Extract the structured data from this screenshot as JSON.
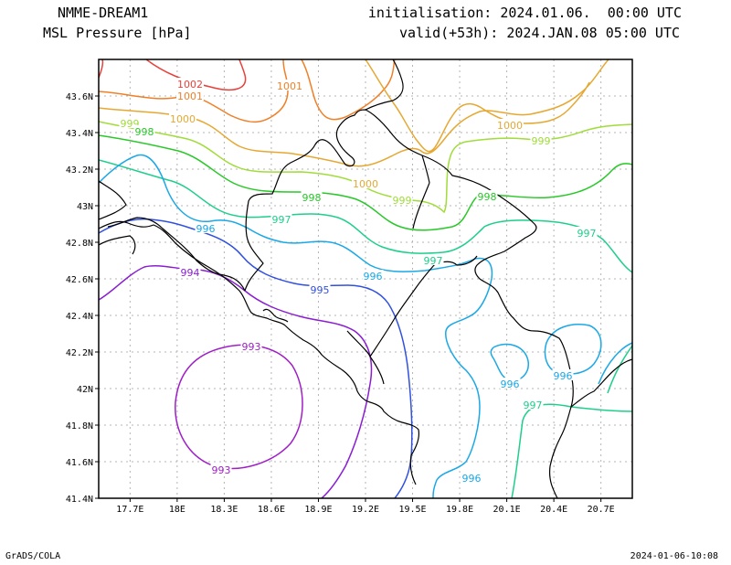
{
  "header": {
    "model": "NMME-DREAM1",
    "variable": "MSL Pressure [hPa]",
    "init": "initialisation: 2024.01.06.  00:00 UTC",
    "valid": "valid(+53h): 2024.JAN.08 05:00 UTC"
  },
  "footer": {
    "left": "GrADS/COLA",
    "right": "2024-01-06-10:08"
  },
  "map": {
    "x_ticks": [
      "17.7E",
      "18E",
      "18.3E",
      "18.6E",
      "18.9E",
      "19.2E",
      "19.5E",
      "19.8E",
      "20.1E",
      "20.4E",
      "20.7E"
    ],
    "y_ticks": [
      "43.6N",
      "43.4N",
      "43.2N",
      "43N",
      "42.8N",
      "42.6N",
      "42.4N",
      "42.2N",
      "42N",
      "41.8N",
      "41.6N",
      "41.4N"
    ],
    "lon_range": [
      17.5,
      20.9
    ],
    "lat_range": [
      41.4,
      43.8
    ],
    "grid": true,
    "contour_labels": [
      {
        "text": "1002",
        "color": "#e8413a"
      },
      {
        "text": "1001",
        "color": "#f08028"
      },
      {
        "text": "1001",
        "color": "#f08028"
      },
      {
        "text": "1000",
        "color": "#e6a832"
      },
      {
        "text": "1000",
        "color": "#e6a832"
      },
      {
        "text": "1000",
        "color": "#e6a832"
      },
      {
        "text": "999",
        "color": "#a0dc3a"
      },
      {
        "text": "999",
        "color": "#a0dc3a"
      },
      {
        "text": "999",
        "color": "#a0dc3a"
      },
      {
        "text": "998",
        "color": "#28c828"
      },
      {
        "text": "998",
        "color": "#28c828"
      },
      {
        "text": "998",
        "color": "#28c828"
      },
      {
        "text": "997",
        "color": "#1ecf8c"
      },
      {
        "text": "997",
        "color": "#1ecf8c"
      },
      {
        "text": "997",
        "color": "#1ecf8c"
      },
      {
        "text": "997",
        "color": "#1ecf8c"
      },
      {
        "text": "996",
        "color": "#1aa8e6"
      },
      {
        "text": "996",
        "color": "#1aa8e6"
      },
      {
        "text": "996",
        "color": "#1aa8e6"
      },
      {
        "text": "996",
        "color": "#1aa8e6"
      },
      {
        "text": "996",
        "color": "#1aa8e6"
      },
      {
        "text": "995",
        "color": "#3050e0"
      },
      {
        "text": "994",
        "color": "#8a1ed2"
      },
      {
        "text": "993",
        "color": "#a01ec8"
      },
      {
        "text": "993",
        "color": "#a01ec8"
      }
    ],
    "colors": {
      "1002": "#e8413a",
      "1001": "#f08028",
      "1000": "#e6a832",
      "999": "#a0dc3a",
      "998": "#28c828",
      "997": "#1ecf8c",
      "996": "#1aa8e6",
      "995": "#3050e0",
      "994": "#8a1ed2",
      "993": "#a01ec8",
      "coast": "#000000",
      "grid": "#b4b4b4"
    }
  }
}
